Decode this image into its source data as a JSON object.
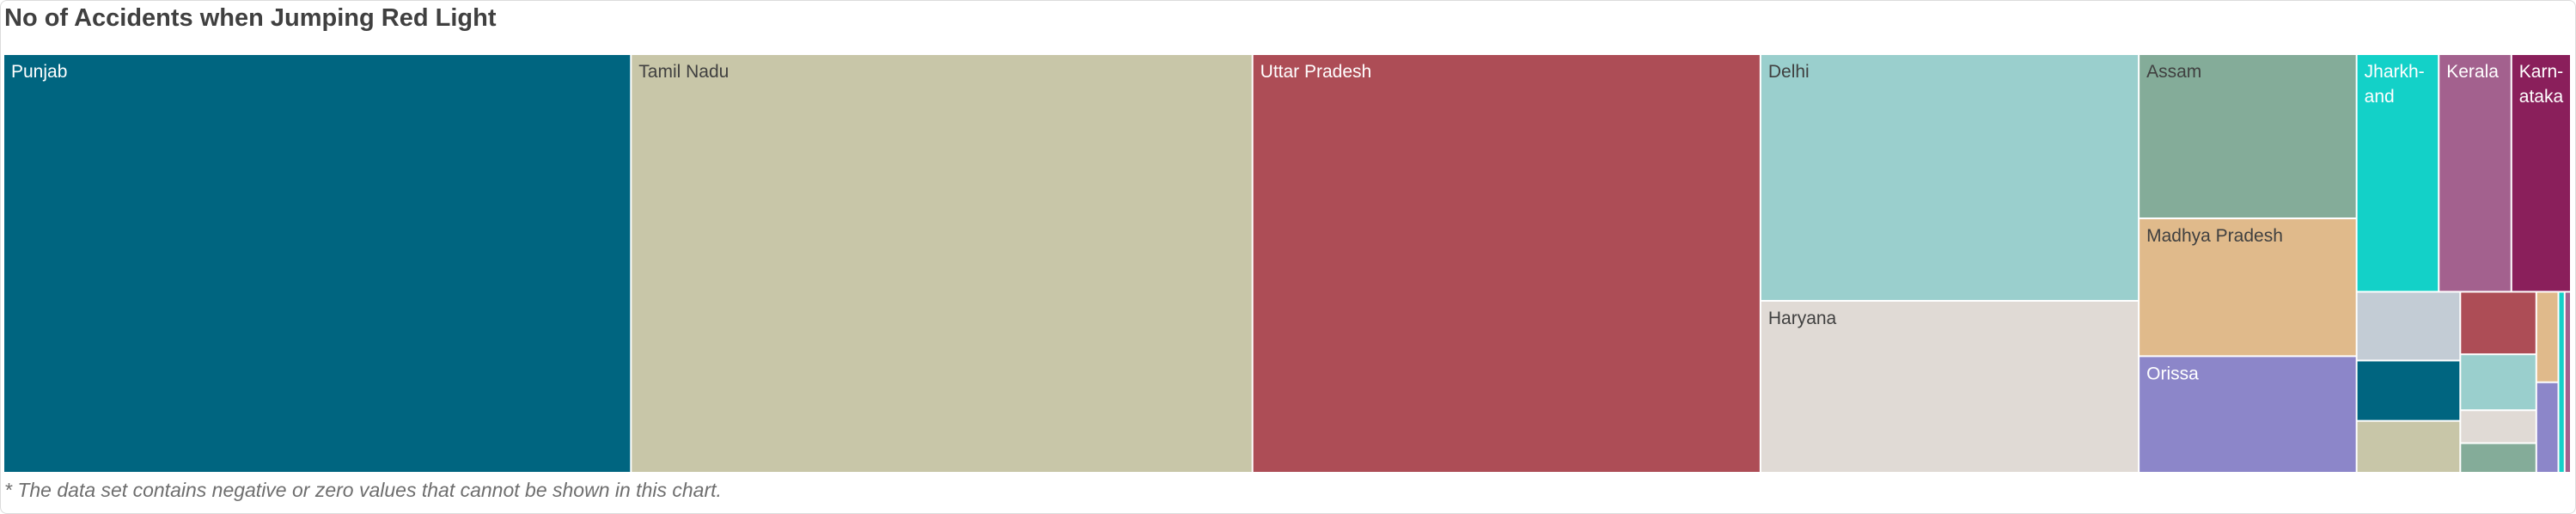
{
  "chart": {
    "title": "No of Accidents when Jumping Red Light",
    "footnote": "* The data set contains negative or zero values that cannot be shown in this chart."
  },
  "chart_data": {
    "type": "treemap",
    "title": "No of Accidents when Jumping Red Light",
    "units": "accidents",
    "items": [
      {
        "label": "Punjab",
        "value": 2100,
        "color": "#006580",
        "text_color": "#ffffff"
      },
      {
        "label": "Tamil Nadu",
        "value": 2080,
        "color": "#c8c6a8",
        "text_color": "#404040"
      },
      {
        "label": "Uttar Pradesh",
        "value": 1700,
        "color": "#ad4d56",
        "text_color": "#ffffff"
      },
      {
        "label": "Delhi",
        "value": 746,
        "color": "#9acfcd",
        "text_color": "#404040"
      },
      {
        "label": "Haryana",
        "value": 520,
        "color": "#e0dad5",
        "text_color": "#404040"
      },
      {
        "label": "Assam",
        "value": 286,
        "color": "#84ac99",
        "text_color": "#404040"
      },
      {
        "label": "Madhya Pradesh",
        "value": 240,
        "color": "#e0ba8b",
        "text_color": "#404040"
      },
      {
        "label": "Orissa",
        "value": 203,
        "color": "#8c86c9",
        "text_color": "#ffffff"
      },
      {
        "label": "Jharkhand",
        "value": 156,
        "color": "#13d1c8",
        "text_color": "#ffffff",
        "display_label": [
          "Jharkh-",
          "and"
        ]
      },
      {
        "label": "Kerala",
        "value": 138,
        "color": "#a3618e",
        "text_color": "#ffffff"
      },
      {
        "label": "Karnataka",
        "value": 113,
        "color": "#8a1f5b",
        "text_color": "#ffffff",
        "display_label": [
          "Karn-",
          "ataka"
        ]
      },
      {
        "value": 57,
        "color": "#c3ccd5"
      },
      {
        "value": 50,
        "color": "#006580"
      },
      {
        "value": 43,
        "color": "#c8c6a8"
      },
      {
        "value": 38,
        "color": "#ad4d56"
      },
      {
        "value": 34,
        "color": "#9acfcd"
      },
      {
        "value": 20,
        "color": "#e0dad5"
      },
      {
        "value": 18,
        "color": "#84ac99"
      },
      {
        "value": 16,
        "color": "#e0ba8b"
      },
      {
        "value": 16,
        "color": "#8c86c9"
      },
      {
        "value": 9,
        "color": "#13d1c8"
      },
      {
        "value": 9,
        "color": "#a3618e"
      }
    ]
  }
}
